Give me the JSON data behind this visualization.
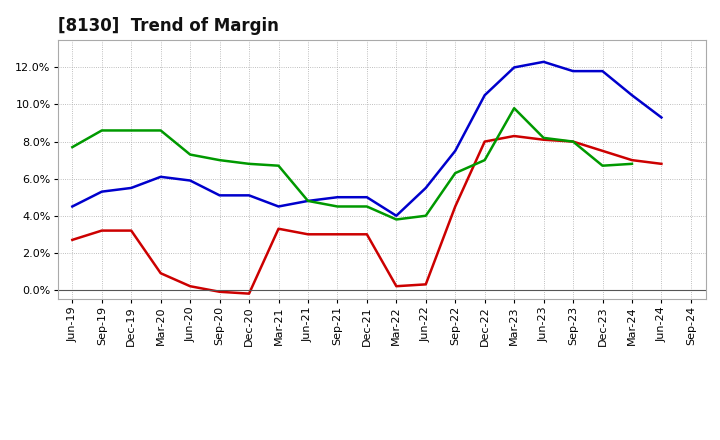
{
  "title": "[8130]  Trend of Margin",
  "x_labels": [
    "Jun-19",
    "Sep-19",
    "Dec-19",
    "Mar-20",
    "Jun-20",
    "Sep-20",
    "Dec-20",
    "Mar-21",
    "Jun-21",
    "Sep-21",
    "Dec-21",
    "Mar-22",
    "Jun-22",
    "Sep-22",
    "Dec-22",
    "Mar-23",
    "Jun-23",
    "Sep-23",
    "Dec-23",
    "Mar-24",
    "Jun-24",
    "Sep-24"
  ],
  "ordinary_income": [
    4.5,
    5.3,
    5.5,
    6.1,
    5.9,
    5.1,
    5.1,
    4.5,
    4.8,
    5.0,
    5.0,
    4.0,
    5.5,
    7.5,
    10.5,
    12.0,
    12.3,
    11.8,
    11.8,
    10.5,
    9.3,
    null
  ],
  "net_income": [
    2.7,
    3.2,
    3.2,
    0.9,
    0.2,
    -0.1,
    -0.2,
    3.3,
    3.0,
    3.0,
    3.0,
    0.2,
    0.3,
    4.5,
    8.0,
    8.3,
    8.1,
    8.0,
    7.5,
    7.0,
    6.8,
    null
  ],
  "operating_cashflow": [
    7.7,
    8.6,
    8.6,
    8.6,
    7.3,
    7.0,
    6.8,
    6.7,
    4.8,
    4.5,
    4.5,
    3.8,
    4.0,
    6.3,
    7.0,
    9.8,
    8.2,
    8.0,
    6.7,
    6.8,
    null,
    null
  ],
  "ylim": [
    -0.5,
    13.5
  ],
  "yticks": [
    0.0,
    2.0,
    4.0,
    6.0,
    8.0,
    10.0,
    12.0
  ],
  "line_color_blue": "#0000CC",
  "line_color_red": "#CC0000",
  "line_color_green": "#009900",
  "background_color": "#FFFFFF",
  "plot_bg_color": "#FFFFFF",
  "grid_color": "#AAAAAA",
  "title_fontsize": 12,
  "axis_fontsize": 8,
  "legend_fontsize": 9
}
